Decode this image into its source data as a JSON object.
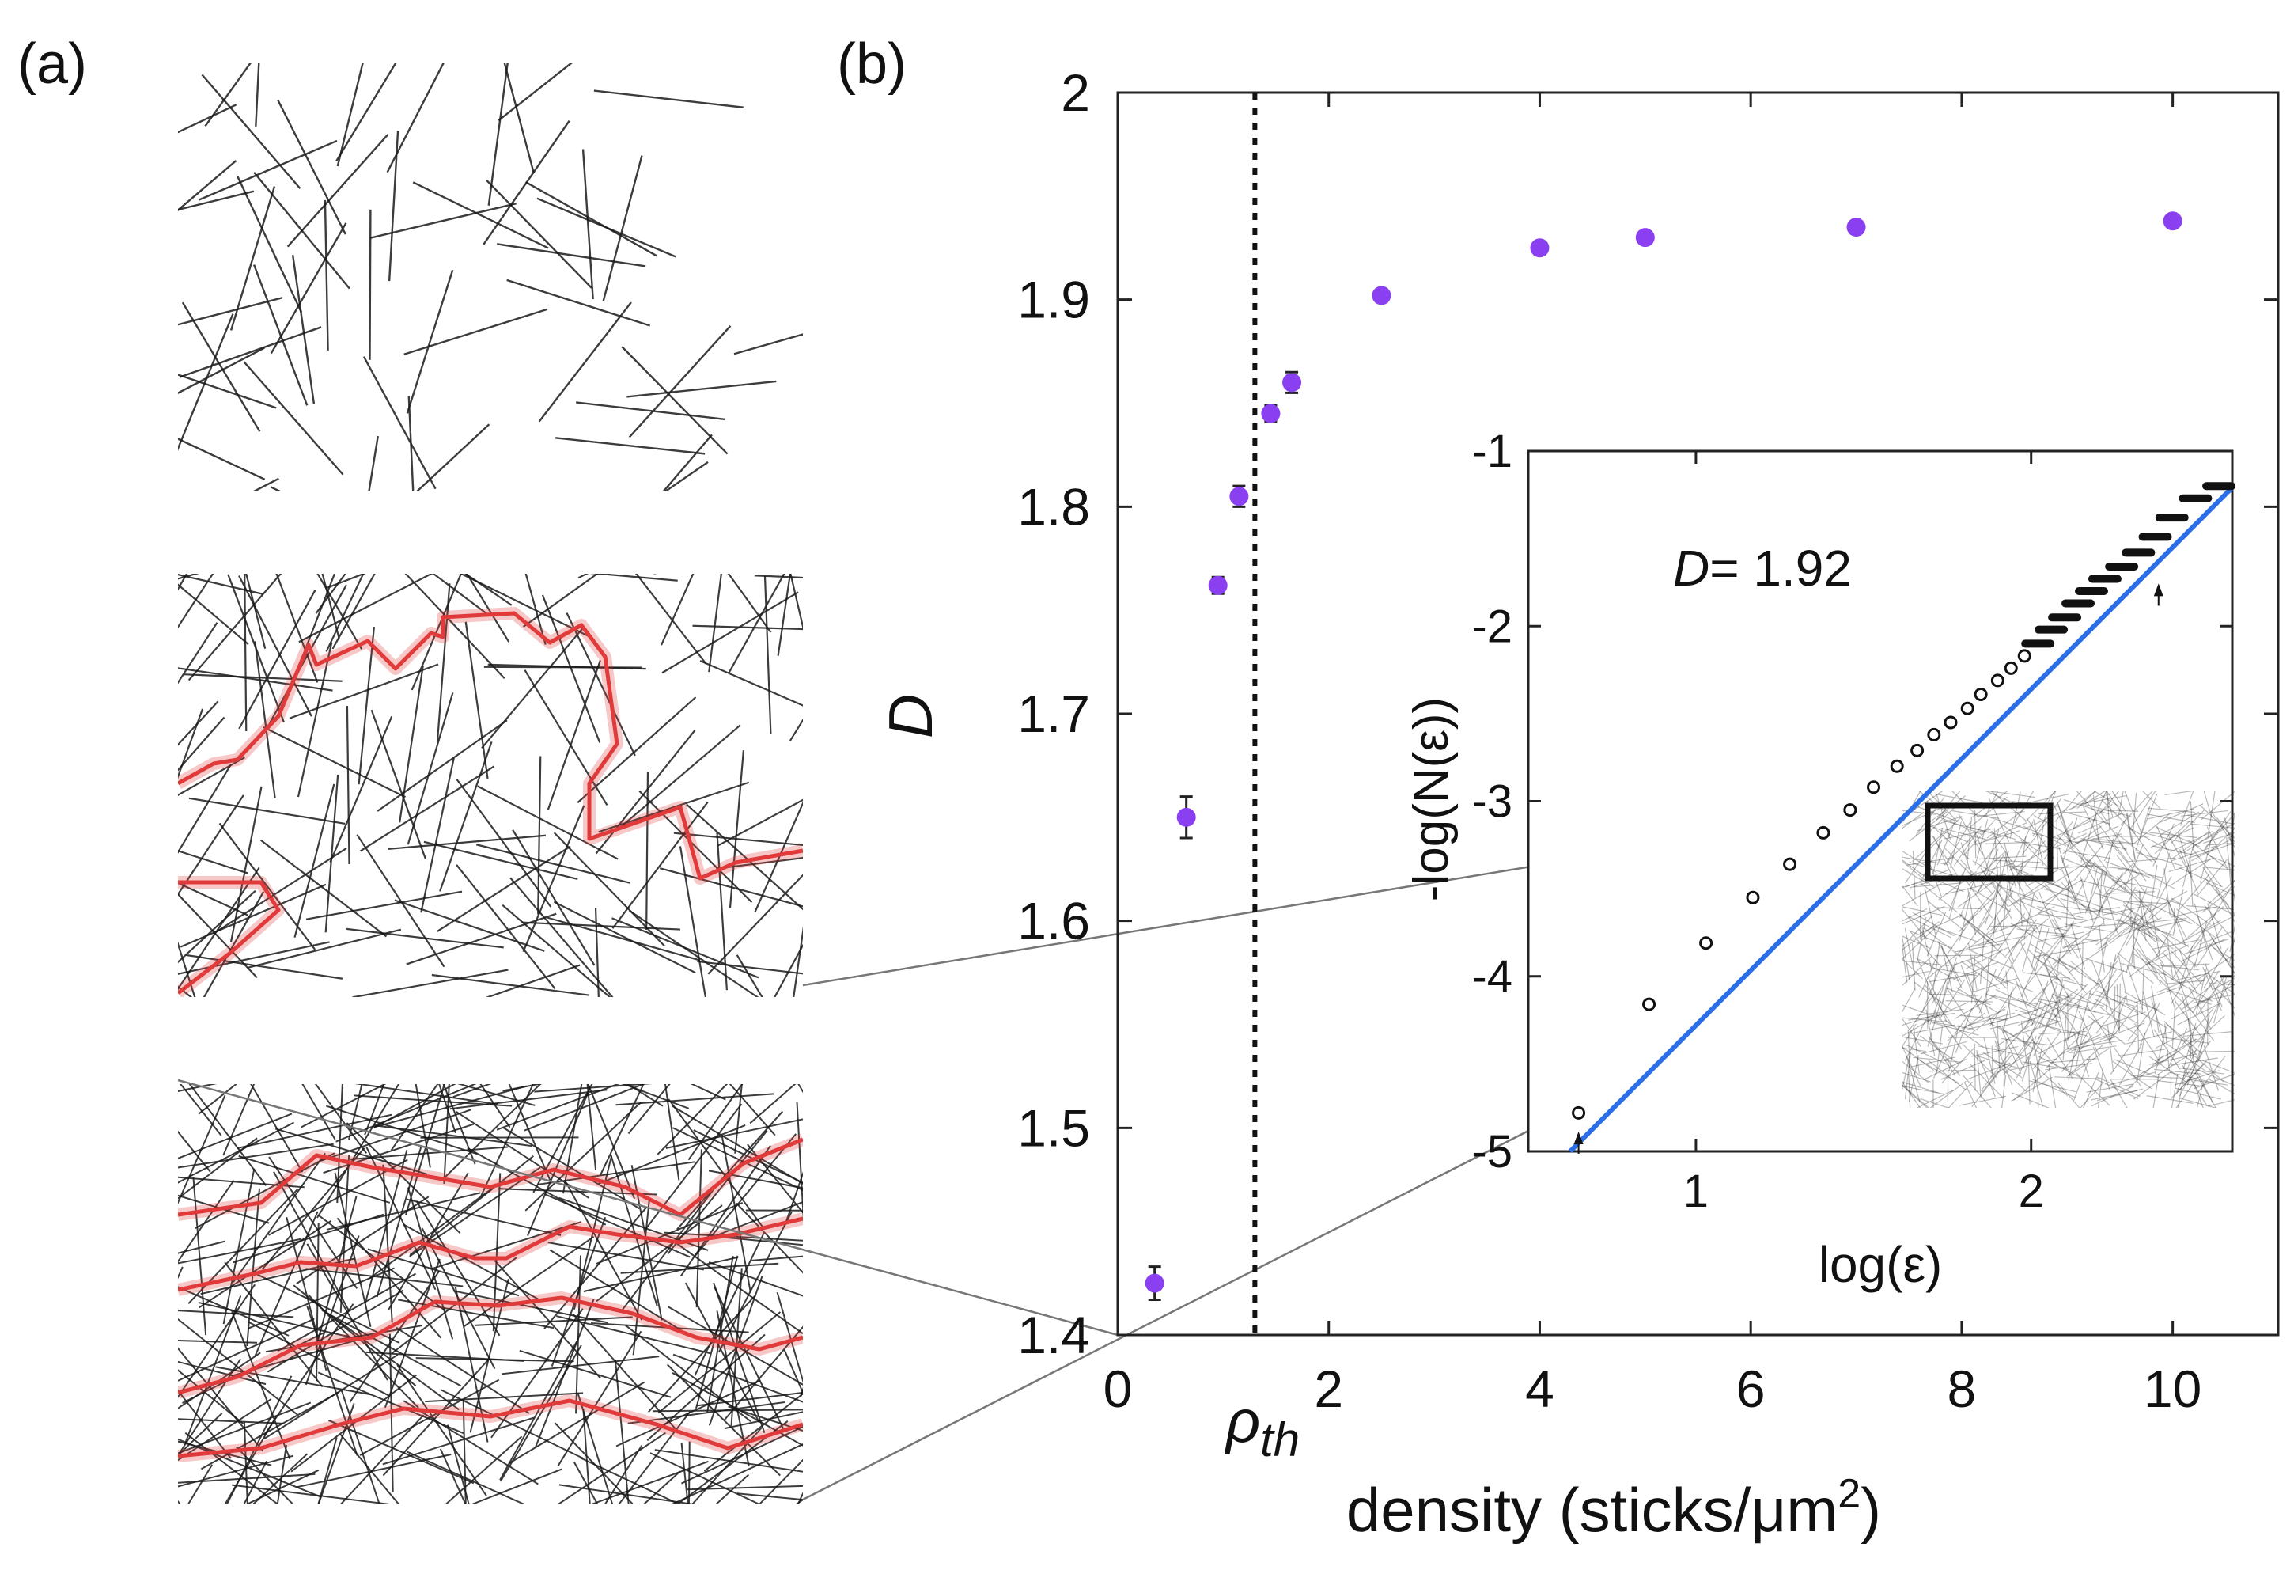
{
  "panel_a": {
    "label": "(a)",
    "colors": {
      "stick": "#1a1a1a",
      "backbone": "#e03a3a"
    }
  },
  "chart_data": [
    {
      "type": "scatter",
      "panel_label": "(b)",
      "title": "",
      "xlabel": "density (sticks/μm",
      "xlabel_superscript": "2",
      "xlabel_close": ")",
      "ylabel": "D",
      "xlim": [
        0,
        11
      ],
      "ylim": [
        1.4,
        2.0
      ],
      "xticks": [
        0,
        2,
        4,
        6,
        8,
        10
      ],
      "yticks": [
        1.4,
        1.5,
        1.6,
        1.7,
        1.8,
        1.9,
        2.0
      ],
      "xtick_labels": [
        "0",
        "2",
        "4",
        "6",
        "8",
        "10"
      ],
      "ytick_labels": [
        "1.4",
        "1.5",
        "1.6",
        "1.7",
        "1.8",
        "1.9",
        "2"
      ],
      "threshold": {
        "x": 1.3,
        "label": "ρ",
        "label_sub": "th"
      },
      "marker_color": "#8a3ff0",
      "points": [
        {
          "x": 0.35,
          "y": 1.425,
          "err": 0.008
        },
        {
          "x": 0.65,
          "y": 1.65,
          "err": 0.01
        },
        {
          "x": 0.95,
          "y": 1.762,
          "err": 0.004
        },
        {
          "x": 1.15,
          "y": 1.805,
          "err": 0.005
        },
        {
          "x": 1.45,
          "y": 1.845,
          "err": 0.004
        },
        {
          "x": 1.65,
          "y": 1.86,
          "err": 0.005
        },
        {
          "x": 2.5,
          "y": 1.902,
          "err": 0.003
        },
        {
          "x": 4.0,
          "y": 1.925,
          "err": 0.003
        },
        {
          "x": 5.0,
          "y": 1.93,
          "err": 0.002
        },
        {
          "x": 7.0,
          "y": 1.935,
          "err": 0.002
        },
        {
          "x": 10.0,
          "y": 1.938,
          "err": 0.002
        }
      ]
    },
    {
      "type": "scatter",
      "title": "",
      "annotation": {
        "symbol": "D",
        "text": "= 1.92"
      },
      "xlabel": "log(ε)",
      "ylabel": "-log(N(ε))",
      "xlim": [
        0.5,
        2.6
      ],
      "ylim": [
        -5,
        -1
      ],
      "xticks": [
        1,
        2
      ],
      "yticks": [
        -5,
        -4,
        -3,
        -2,
        -1
      ],
      "xtick_labels": [
        "1",
        "2"
      ],
      "ytick_labels": [
        "-5",
        "-4",
        "-3",
        "-2",
        "-1"
      ],
      "fit_line": {
        "slope": 1.92,
        "intercept": -6.2,
        "color": "#2a6fe8"
      },
      "arrow_markers": [
        {
          "x": 0.65,
          "y": -4.95
        },
        {
          "x": 2.38,
          "y": -1.82
        }
      ],
      "points": [
        {
          "x": 0.65,
          "y": -4.78
        },
        {
          "x": 0.86,
          "y": -4.16
        },
        {
          "x": 1.03,
          "y": -3.81
        },
        {
          "x": 1.17,
          "y": -3.55
        },
        {
          "x": 1.28,
          "y": -3.36
        },
        {
          "x": 1.38,
          "y": -3.18
        },
        {
          "x": 1.46,
          "y": -3.05
        },
        {
          "x": 1.53,
          "y": -2.92
        },
        {
          "x": 1.6,
          "y": -2.8
        },
        {
          "x": 1.66,
          "y": -2.71
        },
        {
          "x": 1.71,
          "y": -2.62
        },
        {
          "x": 1.76,
          "y": -2.55
        },
        {
          "x": 1.81,
          "y": -2.47
        },
        {
          "x": 1.85,
          "y": -2.39
        },
        {
          "x": 1.9,
          "y": -2.31
        },
        {
          "x": 1.94,
          "y": -2.24
        },
        {
          "x": 1.98,
          "y": -2.17
        },
        {
          "x": 2.02,
          "y": -2.1
        },
        {
          "x": 2.06,
          "y": -2.02
        },
        {
          "x": 2.1,
          "y": -1.95
        },
        {
          "x": 2.14,
          "y": -1.87
        },
        {
          "x": 2.18,
          "y": -1.8
        },
        {
          "x": 2.22,
          "y": -1.73
        },
        {
          "x": 2.27,
          "y": -1.66
        },
        {
          "x": 2.32,
          "y": -1.58
        },
        {
          "x": 2.37,
          "y": -1.49
        },
        {
          "x": 2.42,
          "y": -1.38
        },
        {
          "x": 2.49,
          "y": -1.27
        },
        {
          "x": 2.56,
          "y": -1.2
        }
      ]
    }
  ]
}
